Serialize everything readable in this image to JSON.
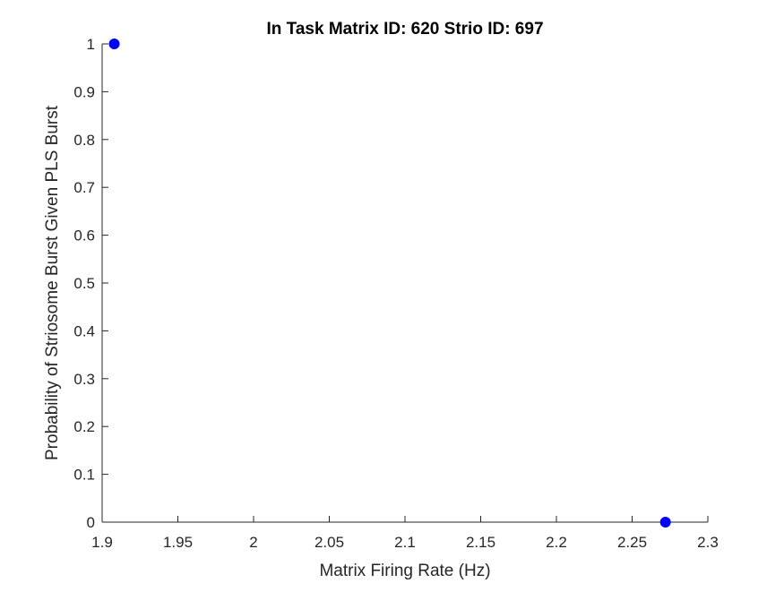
{
  "chart_data": {
    "type": "scatter",
    "title": "In Task Matrix ID: 620 Strio ID: 697",
    "xlabel": "Matrix Firing Rate (Hz)",
    "ylabel": "Probability of Striosome Burst Given PLS Burst",
    "xlim": [
      1.9,
      2.3
    ],
    "ylim": [
      0,
      1
    ],
    "xticks": [
      1.9,
      1.95,
      2.0,
      2.05,
      2.1,
      2.15,
      2.2,
      2.25,
      2.3
    ],
    "xtick_labels": [
      "1.9",
      "1.95",
      "2",
      "2.05",
      "2.1",
      "2.15",
      "2.2",
      "2.25",
      "2.3"
    ],
    "yticks": [
      0,
      0.1,
      0.2,
      0.3,
      0.4,
      0.5,
      0.6,
      0.7,
      0.8,
      0.9,
      1.0
    ],
    "ytick_labels": [
      "0",
      "0.1",
      "0.2",
      "0.3",
      "0.4",
      "0.5",
      "0.6",
      "0.7",
      "0.8",
      "0.9",
      "1"
    ],
    "grid": false,
    "series": [
      {
        "color": "#0000ff",
        "marker": "circle",
        "points": [
          {
            "x": 1.908,
            "y": 1.0
          },
          {
            "x": 2.272,
            "y": 0.0
          }
        ]
      }
    ]
  }
}
